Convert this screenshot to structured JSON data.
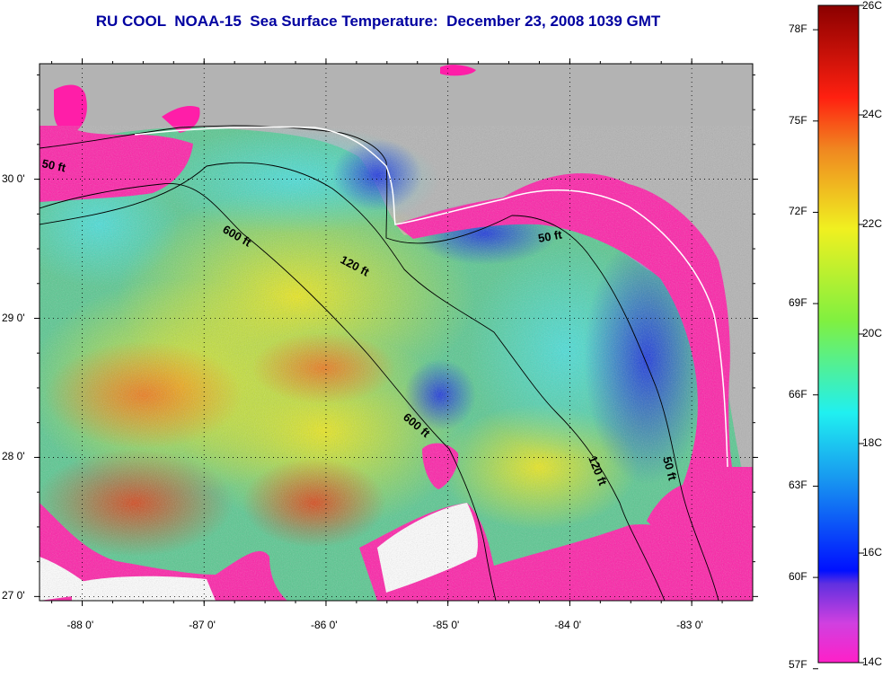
{
  "title": "RU COOL  NOAA-15  Sea Surface Temperature:  December 23, 2008 1039 GMT",
  "map": {
    "lon_range": [
      -88.35,
      -82.5
    ],
    "lat_range": [
      26.97,
      30.83
    ],
    "lon_ticks": [
      -88,
      -87,
      -86,
      -85,
      -84,
      -83
    ],
    "lon_tick_labels": [
      "-88 0'",
      "-87 0'",
      "-86 0'",
      "-85 0'",
      "-84 0'",
      "-83 0'"
    ],
    "lat_ticks": [
      27,
      28,
      29,
      30
    ],
    "lat_tick_labels": [
      "27 0'",
      "28 0'",
      "29 0'",
      "30 0'"
    ],
    "grid": "dotted",
    "land_color": "#b3b3b3",
    "cloud_color": "#ffffff",
    "depth_contour_labels": [
      "50 ft",
      "600 ft",
      "120 ft",
      "50 ft",
      "600 ft",
      "120 ft",
      "50 ft"
    ]
  },
  "colorbar": {
    "celsius_labels": [
      "26C",
      "24C",
      "22C",
      "20C",
      "18C",
      "16C",
      "14C"
    ],
    "fahrenheit_labels": [
      "78F",
      "75F",
      "72F",
      "69F",
      "66F",
      "63F",
      "60F",
      "57F"
    ],
    "celsius_range": [
      14,
      26
    ]
  }
}
